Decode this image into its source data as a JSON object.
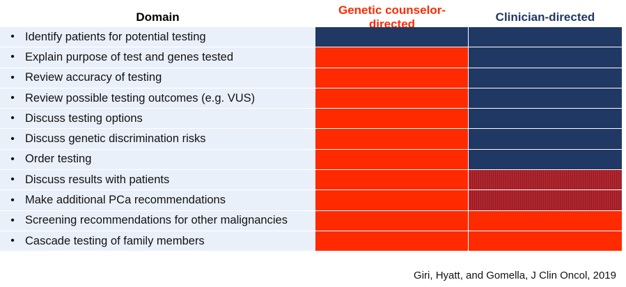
{
  "table": {
    "headers": {
      "domain": "Domain",
      "genetic_counselor": "Genetic counselor-directed",
      "clinician": "Clinician-directed"
    },
    "header_colors": {
      "genetic_counselor": "#ff2a00",
      "clinician": "#203864"
    },
    "cell_colors": {
      "navy": "#203864",
      "red": "#ff2a00",
      "striped": "#b8242c"
    },
    "bullet": "•",
    "rows": [
      {
        "label": "Identify patients for potential testing",
        "genetic_counselor": "navy",
        "clinician": "navy"
      },
      {
        "label": "Explain purpose of test and genes tested",
        "genetic_counselor": "red",
        "clinician": "navy"
      },
      {
        "label": "Review accuracy of testing",
        "genetic_counselor": "red",
        "clinician": "navy"
      },
      {
        "label": "Review possible testing outcomes (e.g. VUS)",
        "genetic_counselor": "red",
        "clinician": "navy"
      },
      {
        "label": "Discuss testing options",
        "genetic_counselor": "red",
        "clinician": "navy"
      },
      {
        "label": "Discuss genetic discrimination risks",
        "genetic_counselor": "red",
        "clinician": "navy"
      },
      {
        "label": "Order testing",
        "genetic_counselor": "red",
        "clinician": "navy"
      },
      {
        "label": "Discuss results with patients",
        "genetic_counselor": "red",
        "clinician": "striped"
      },
      {
        "label": "Make additional PCa recommendations",
        "genetic_counselor": "red",
        "clinician": "striped"
      },
      {
        "label": "Screening recommendations for other malignancies",
        "genetic_counselor": "red",
        "clinician": "red"
      },
      {
        "label": "Cascade testing of family members",
        "genetic_counselor": "red",
        "clinician": "red"
      }
    ]
  },
  "citation": "Giri, Hyatt, and Gomella, J Clin Oncol, 2019"
}
